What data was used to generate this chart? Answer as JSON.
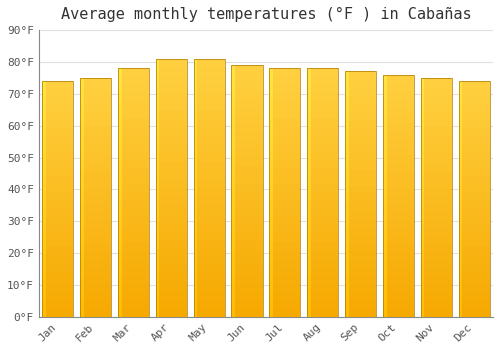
{
  "title": "Average monthly temperatures (°F ) in Cabañas",
  "months": [
    "Jan",
    "Feb",
    "Mar",
    "Apr",
    "May",
    "Jun",
    "Jul",
    "Aug",
    "Sep",
    "Oct",
    "Nov",
    "Dec"
  ],
  "values": [
    74,
    75,
    78,
    81,
    81,
    79,
    78,
    78,
    77,
    76,
    75,
    74
  ],
  "bar_color_bottom": "#F5A800",
  "bar_color_top": "#FFD040",
  "bar_color_left_highlight": "#FFCC33",
  "background_color": "#ffffff",
  "plot_bg_color": "#ffffff",
  "ylim": [
    0,
    90
  ],
  "yticks": [
    0,
    10,
    20,
    30,
    40,
    50,
    60,
    70,
    80,
    90
  ],
  "ytick_labels": [
    "0°F",
    "10°F",
    "20°F",
    "30°F",
    "40°F",
    "50°F",
    "60°F",
    "70°F",
    "80°F",
    "90°F"
  ],
  "grid_color": "#e0e0e0",
  "title_fontsize": 11,
  "tick_fontsize": 8,
  "font_family": "monospace",
  "tick_color": "#555555",
  "bar_width": 0.82,
  "n_gradient_steps": 30
}
